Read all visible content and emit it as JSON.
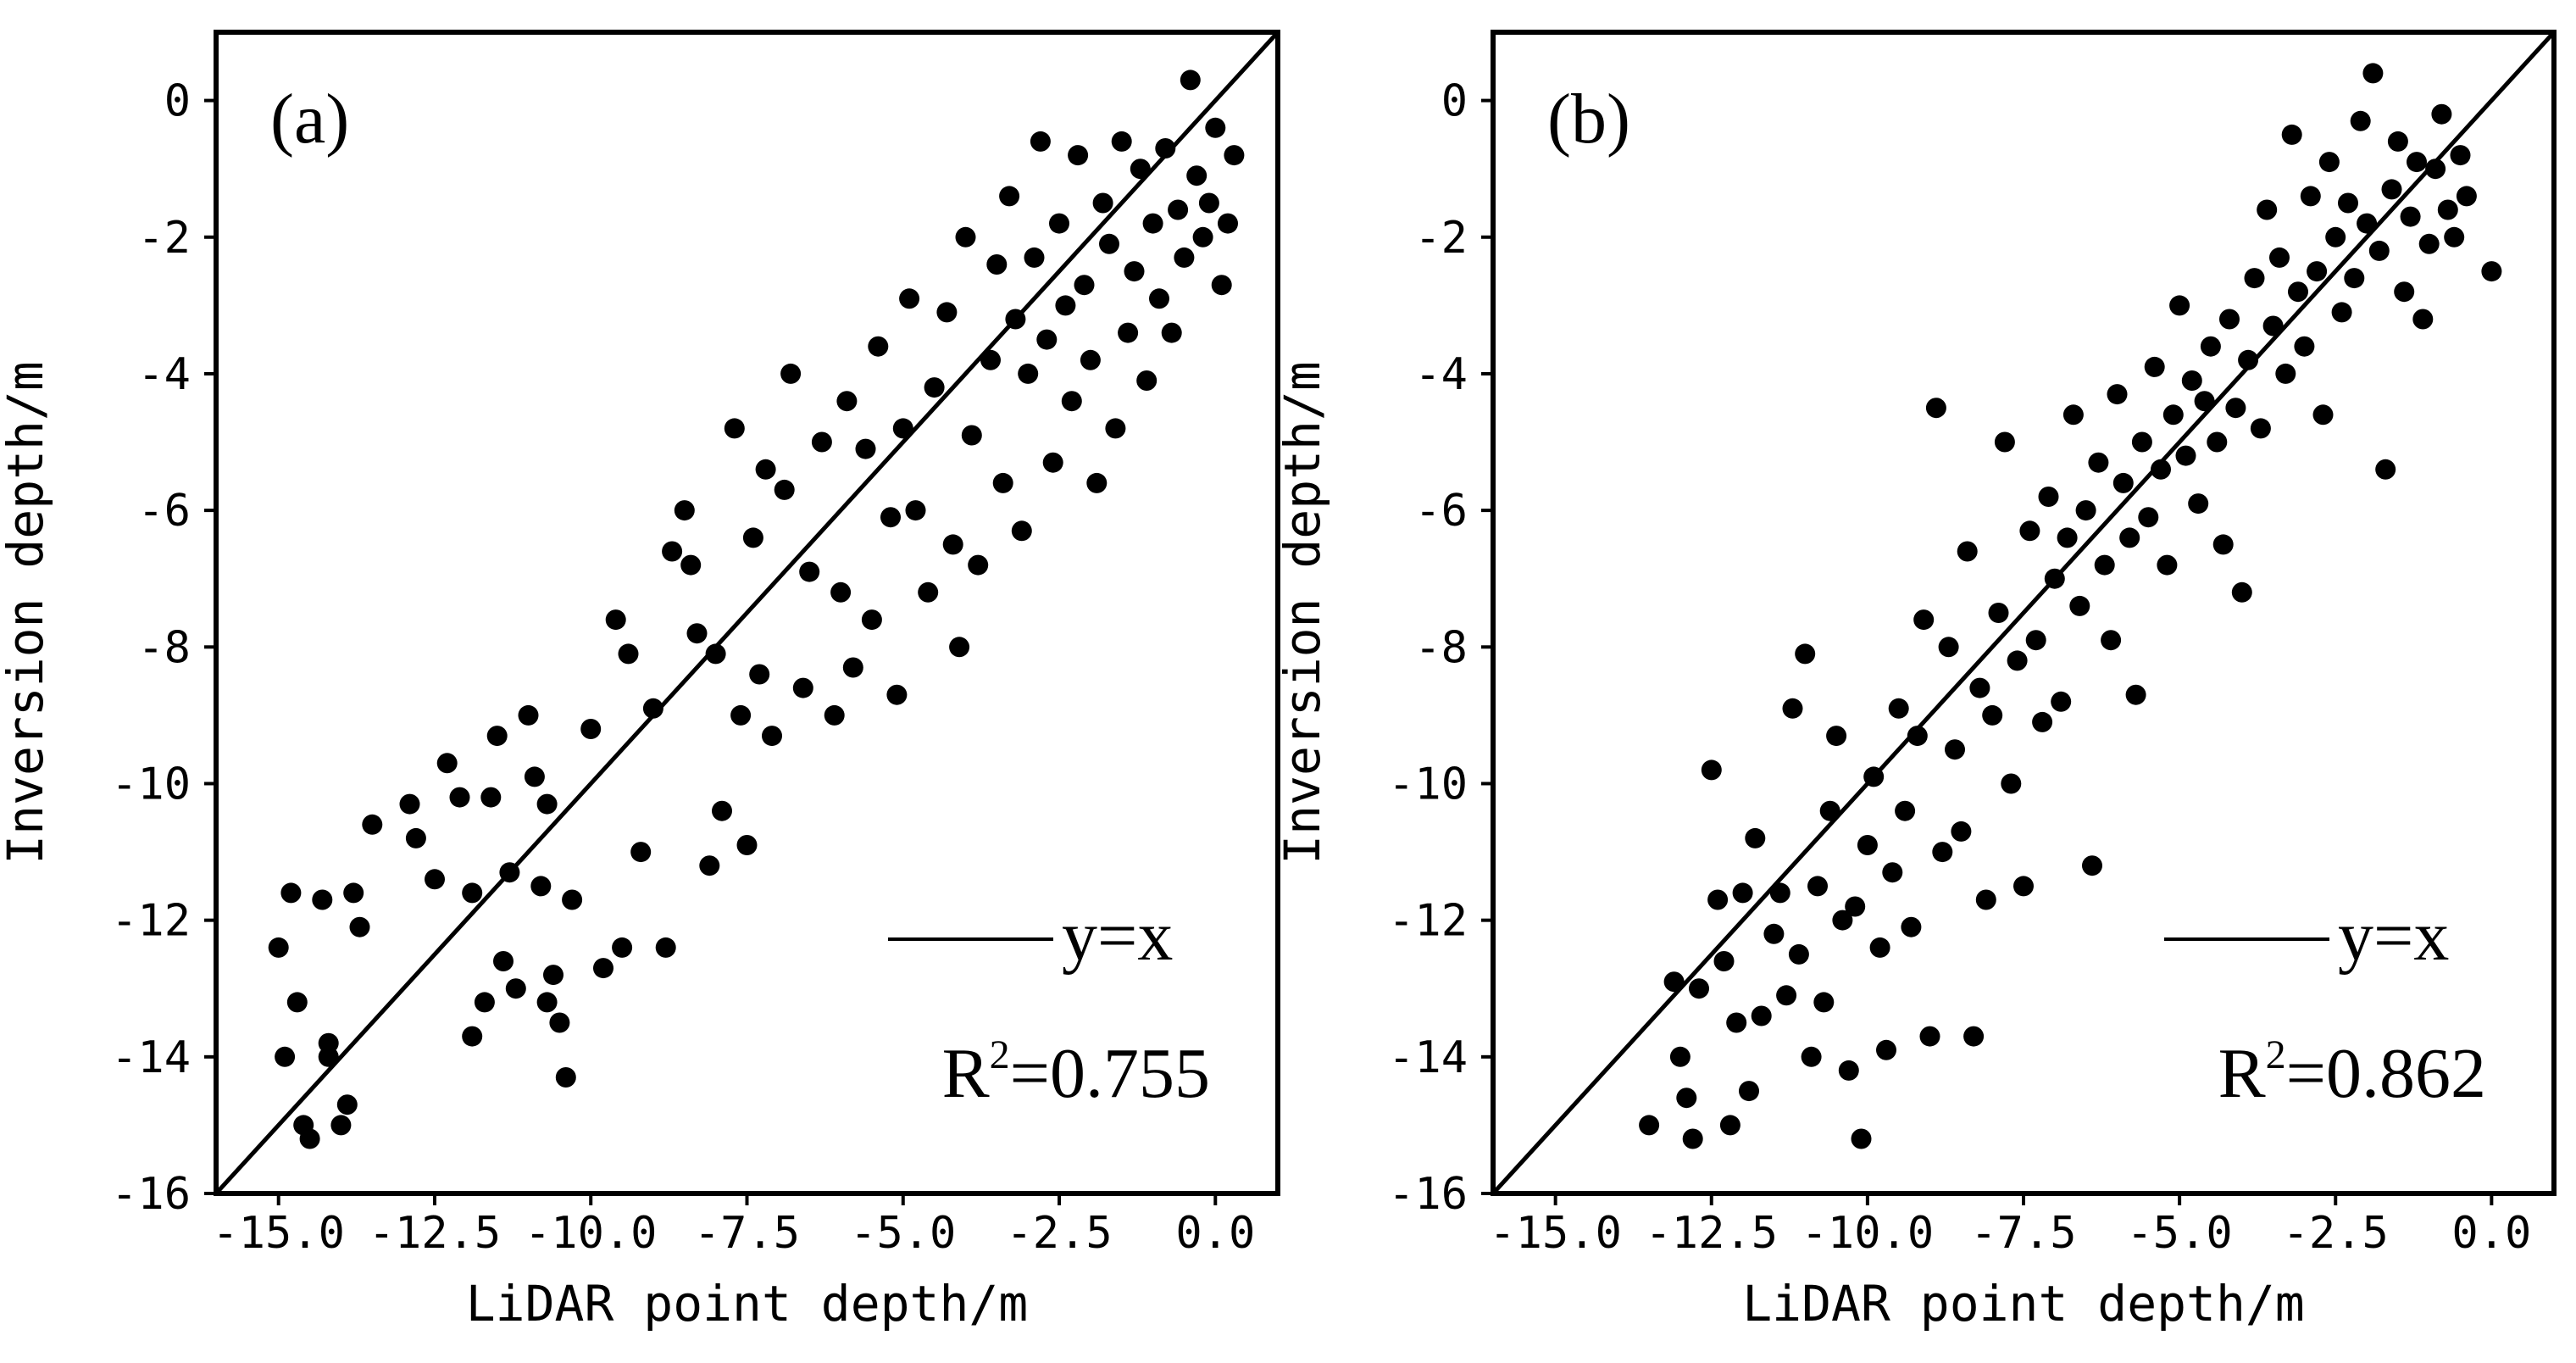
{
  "chart_data": [
    {
      "type": "scatter",
      "panel_label": "(a)",
      "xlabel": "LiDAR point depth/m",
      "ylabel": "Inversion depth/m",
      "xlim": [
        -16,
        1
      ],
      "ylim": [
        -16,
        1
      ],
      "xticks": [
        -15.0,
        -12.5,
        -10.0,
        -7.5,
        -5.0,
        -2.5,
        0.0
      ],
      "xtick_labels": [
        "-15.0",
        "-12.5",
        "-10.0",
        "-7.5",
        "-5.0",
        "-2.5",
        "0.0"
      ],
      "yticks": [
        0,
        -2,
        -4,
        -6,
        -8,
        -10,
        -12,
        -14,
        -16
      ],
      "ytick_labels": [
        "0",
        "-2",
        "-4",
        "-6",
        "-8",
        "-10",
        "-12",
        "-14",
        "-16"
      ],
      "reference_line": {
        "label": "y=x",
        "from": [
          -16,
          -16
        ],
        "to": [
          1,
          1
        ]
      },
      "r2_prefix": "R",
      "r2_sup": "2",
      "r2_value": "=0.755",
      "series": [
        {
          "name": "samples",
          "marker": "circle",
          "color": "#000000",
          "points": [
            [
              -15.0,
              -12.4
            ],
            [
              -14.9,
              -14.0
            ],
            [
              -14.8,
              -11.6
            ],
            [
              -14.7,
              -13.2
            ],
            [
              -14.6,
              -15.0
            ],
            [
              -14.5,
              -15.2
            ],
            [
              -14.3,
              -11.7
            ],
            [
              -14.2,
              -14.0
            ],
            [
              -14.2,
              -13.8
            ],
            [
              -14.0,
              -15.0
            ],
            [
              -13.9,
              -14.7
            ],
            [
              -13.8,
              -11.6
            ],
            [
              -13.7,
              -12.1
            ],
            [
              -13.5,
              -10.6
            ],
            [
              -12.9,
              -10.3
            ],
            [
              -12.8,
              -10.8
            ],
            [
              -12.5,
              -11.4
            ],
            [
              -12.3,
              -9.7
            ],
            [
              -12.1,
              -10.2
            ],
            [
              -11.9,
              -11.6
            ],
            [
              -11.9,
              -13.7
            ],
            [
              -11.7,
              -13.2
            ],
            [
              -11.6,
              -10.2
            ],
            [
              -11.5,
              -9.3
            ],
            [
              -11.4,
              -12.6
            ],
            [
              -11.3,
              -11.3
            ],
            [
              -11.2,
              -13.0
            ],
            [
              -11.0,
              -9.0
            ],
            [
              -10.9,
              -9.9
            ],
            [
              -10.8,
              -11.5
            ],
            [
              -10.7,
              -10.3
            ],
            [
              -10.7,
              -13.2
            ],
            [
              -10.6,
              -12.8
            ],
            [
              -10.5,
              -13.5
            ],
            [
              -10.4,
              -14.3
            ],
            [
              -10.3,
              -11.7
            ],
            [
              -10.0,
              -9.2
            ],
            [
              -9.8,
              -12.7
            ],
            [
              -9.6,
              -7.6
            ],
            [
              -9.5,
              -12.4
            ],
            [
              -9.4,
              -8.1
            ],
            [
              -9.2,
              -11.0
            ],
            [
              -9.0,
              -8.9
            ],
            [
              -8.8,
              -12.4
            ],
            [
              -8.7,
              -6.6
            ],
            [
              -8.5,
              -6.0
            ],
            [
              -8.4,
              -6.8
            ],
            [
              -8.3,
              -7.8
            ],
            [
              -8.1,
              -11.2
            ],
            [
              -8.0,
              -8.1
            ],
            [
              -7.9,
              -10.4
            ],
            [
              -7.7,
              -4.8
            ],
            [
              -7.6,
              -9.0
            ],
            [
              -7.5,
              -10.9
            ],
            [
              -7.4,
              -6.4
            ],
            [
              -7.3,
              -8.4
            ],
            [
              -7.2,
              -5.4
            ],
            [
              -7.1,
              -9.3
            ],
            [
              -6.9,
              -5.7
            ],
            [
              -6.8,
              -4.0
            ],
            [
              -6.6,
              -8.6
            ],
            [
              -6.5,
              -6.9
            ],
            [
              -6.3,
              -5.0
            ],
            [
              -6.1,
              -9.0
            ],
            [
              -6.0,
              -7.2
            ],
            [
              -5.9,
              -4.4
            ],
            [
              -5.8,
              -8.3
            ],
            [
              -5.6,
              -5.1
            ],
            [
              -5.5,
              -7.6
            ],
            [
              -5.4,
              -3.6
            ],
            [
              -5.2,
              -6.1
            ],
            [
              -5.1,
              -8.7
            ],
            [
              -5.0,
              -4.8
            ],
            [
              -4.9,
              -2.9
            ],
            [
              -4.8,
              -6.0
            ],
            [
              -4.6,
              -7.2
            ],
            [
              -4.5,
              -4.2
            ],
            [
              -4.3,
              -3.1
            ],
            [
              -4.2,
              -6.5
            ],
            [
              -4.1,
              -8.0
            ],
            [
              -4.0,
              -2.0
            ],
            [
              -3.9,
              -4.9
            ],
            [
              -3.8,
              -6.8
            ],
            [
              -3.6,
              -3.8
            ],
            [
              -3.5,
              -2.4
            ],
            [
              -3.4,
              -5.6
            ],
            [
              -3.3,
              -1.4
            ],
            [
              -3.2,
              -3.2
            ],
            [
              -3.1,
              -6.3
            ],
            [
              -3.0,
              -4.0
            ],
            [
              -2.9,
              -2.3
            ],
            [
              -2.8,
              -0.6
            ],
            [
              -2.7,
              -3.5
            ],
            [
              -2.6,
              -5.3
            ],
            [
              -2.5,
              -1.8
            ],
            [
              -2.4,
              -3.0
            ],
            [
              -2.3,
              -4.4
            ],
            [
              -2.2,
              -0.8
            ],
            [
              -2.1,
              -2.7
            ],
            [
              -2.0,
              -3.8
            ],
            [
              -1.9,
              -5.6
            ],
            [
              -1.8,
              -1.5
            ],
            [
              -1.7,
              -2.1
            ],
            [
              -1.6,
              -4.8
            ],
            [
              -1.5,
              -0.6
            ],
            [
              -1.4,
              -3.4
            ],
            [
              -1.3,
              -2.5
            ],
            [
              -1.2,
              -1.0
            ],
            [
              -1.1,
              -4.1
            ],
            [
              -1.0,
              -1.8
            ],
            [
              -0.9,
              -2.9
            ],
            [
              -0.8,
              -0.7
            ],
            [
              -0.7,
              -3.4
            ],
            [
              -0.6,
              -1.6
            ],
            [
              -0.5,
              -2.3
            ],
            [
              -0.4,
              0.3
            ],
            [
              -0.3,
              -1.1
            ],
            [
              -0.2,
              -2.0
            ],
            [
              -0.1,
              -1.5
            ],
            [
              0.0,
              -0.4
            ],
            [
              0.1,
              -2.7
            ],
            [
              0.2,
              -1.8
            ],
            [
              0.3,
              -0.8
            ]
          ]
        }
      ]
    },
    {
      "type": "scatter",
      "panel_label": "(b)",
      "xlabel": "LiDAR point depth/m",
      "ylabel": "Inversion depth/m",
      "xlim": [
        -16,
        1
      ],
      "ylim": [
        -16,
        1
      ],
      "xticks": [
        -15.0,
        -12.5,
        -10.0,
        -7.5,
        -5.0,
        -2.5,
        0.0
      ],
      "xtick_labels": [
        "-15.0",
        "-12.5",
        "-10.0",
        "-7.5",
        "-5.0",
        "-2.5",
        "0.0"
      ],
      "yticks": [
        0,
        -2,
        -4,
        -6,
        -8,
        -10,
        -12,
        -14,
        -16
      ],
      "ytick_labels": [
        "0",
        "-2",
        "-4",
        "-6",
        "-8",
        "-10",
        "-12",
        "-14",
        "-16"
      ],
      "reference_line": {
        "label": "y=x",
        "from": [
          -16,
          -16
        ],
        "to": [
          1,
          1
        ]
      },
      "r2_prefix": "R",
      "r2_sup": "2",
      "r2_value": "=0.862",
      "series": [
        {
          "name": "samples",
          "marker": "circle",
          "color": "#000000",
          "points": [
            [
              -13.5,
              -15.0
            ],
            [
              -13.1,
              -12.9
            ],
            [
              -13.0,
              -14.0
            ],
            [
              -12.9,
              -14.6
            ],
            [
              -12.8,
              -15.2
            ],
            [
              -12.7,
              -13.0
            ],
            [
              -12.5,
              -9.8
            ],
            [
              -12.4,
              -11.7
            ],
            [
              -12.3,
              -12.6
            ],
            [
              -12.2,
              -15.0
            ],
            [
              -12.1,
              -13.5
            ],
            [
              -12.0,
              -11.6
            ],
            [
              -11.9,
              -14.5
            ],
            [
              -11.8,
              -10.8
            ],
            [
              -11.7,
              -13.4
            ],
            [
              -11.5,
              -12.2
            ],
            [
              -11.4,
              -11.6
            ],
            [
              -11.3,
              -13.1
            ],
            [
              -11.2,
              -8.9
            ],
            [
              -11.1,
              -12.5
            ],
            [
              -11.0,
              -8.1
            ],
            [
              -10.9,
              -14.0
            ],
            [
              -10.8,
              -11.5
            ],
            [
              -10.7,
              -13.2
            ],
            [
              -10.6,
              -10.4
            ],
            [
              -10.5,
              -9.3
            ],
            [
              -10.4,
              -12.0
            ],
            [
              -10.3,
              -14.2
            ],
            [
              -10.2,
              -11.8
            ],
            [
              -10.1,
              -15.2
            ],
            [
              -10.0,
              -10.9
            ],
            [
              -9.9,
              -9.9
            ],
            [
              -9.8,
              -12.4
            ],
            [
              -9.7,
              -13.9
            ],
            [
              -9.6,
              -11.3
            ],
            [
              -9.5,
              -8.9
            ],
            [
              -9.4,
              -10.4
            ],
            [
              -9.3,
              -12.1
            ],
            [
              -9.2,
              -9.3
            ],
            [
              -9.1,
              -7.6
            ],
            [
              -9.0,
              -13.7
            ],
            [
              -8.9,
              -4.5
            ],
            [
              -8.8,
              -11.0
            ],
            [
              -8.7,
              -8.0
            ],
            [
              -8.6,
              -9.5
            ],
            [
              -8.5,
              -10.7
            ],
            [
              -8.4,
              -6.6
            ],
            [
              -8.3,
              -13.7
            ],
            [
              -8.2,
              -8.6
            ],
            [
              -8.1,
              -11.7
            ],
            [
              -8.0,
              -9.0
            ],
            [
              -7.9,
              -7.5
            ],
            [
              -7.8,
              -5.0
            ],
            [
              -7.7,
              -10.0
            ],
            [
              -7.6,
              -8.2
            ],
            [
              -7.5,
              -11.5
            ],
            [
              -7.4,
              -6.3
            ],
            [
              -7.3,
              -7.9
            ],
            [
              -7.2,
              -9.1
            ],
            [
              -7.1,
              -5.8
            ],
            [
              -7.0,
              -7.0
            ],
            [
              -6.9,
              -8.8
            ],
            [
              -6.8,
              -6.4
            ],
            [
              -6.7,
              -4.6
            ],
            [
              -6.6,
              -7.4
            ],
            [
              -6.5,
              -6.0
            ],
            [
              -6.4,
              -11.2
            ],
            [
              -6.3,
              -5.3
            ],
            [
              -6.2,
              -6.8
            ],
            [
              -6.1,
              -7.9
            ],
            [
              -6.0,
              -4.3
            ],
            [
              -5.9,
              -5.6
            ],
            [
              -5.8,
              -6.4
            ],
            [
              -5.7,
              -8.7
            ],
            [
              -5.6,
              -5.0
            ],
            [
              -5.5,
              -6.1
            ],
            [
              -5.4,
              -3.9
            ],
            [
              -5.3,
              -5.4
            ],
            [
              -5.2,
              -6.8
            ],
            [
              -5.1,
              -4.6
            ],
            [
              -5.0,
              -3.0
            ],
            [
              -4.9,
              -5.2
            ],
            [
              -4.8,
              -4.1
            ],
            [
              -4.7,
              -5.9
            ],
            [
              -4.6,
              -4.4
            ],
            [
              -4.5,
              -3.6
            ],
            [
              -4.4,
              -5.0
            ],
            [
              -4.3,
              -6.5
            ],
            [
              -4.2,
              -3.2
            ],
            [
              -4.1,
              -4.5
            ],
            [
              -4.0,
              -7.2
            ],
            [
              -3.9,
              -3.8
            ],
            [
              -3.8,
              -2.6
            ],
            [
              -3.7,
              -4.8
            ],
            [
              -3.6,
              -1.6
            ],
            [
              -3.5,
              -3.3
            ],
            [
              -3.4,
              -2.3
            ],
            [
              -3.3,
              -4.0
            ],
            [
              -3.2,
              -0.5
            ],
            [
              -3.1,
              -2.8
            ],
            [
              -3.0,
              -3.6
            ],
            [
              -2.9,
              -1.4
            ],
            [
              -2.8,
              -2.5
            ],
            [
              -2.7,
              -4.6
            ],
            [
              -2.6,
              -0.9
            ],
            [
              -2.5,
              -2.0
            ],
            [
              -2.4,
              -3.1
            ],
            [
              -2.3,
              -1.5
            ],
            [
              -2.2,
              -2.6
            ],
            [
              -2.1,
              -0.3
            ],
            [
              -2.0,
              -1.8
            ],
            [
              -1.9,
              0.4
            ],
            [
              -1.8,
              -2.2
            ],
            [
              -1.7,
              -5.4
            ],
            [
              -1.6,
              -1.3
            ],
            [
              -1.5,
              -0.6
            ],
            [
              -1.4,
              -2.8
            ],
            [
              -1.3,
              -1.7
            ],
            [
              -1.2,
              -0.9
            ],
            [
              -1.1,
              -3.2
            ],
            [
              -1.0,
              -2.1
            ],
            [
              -0.9,
              -1.0
            ],
            [
              -0.8,
              -0.2
            ],
            [
              -0.7,
              -1.6
            ],
            [
              -0.6,
              -2.0
            ],
            [
              -0.5,
              -0.8
            ],
            [
              -0.4,
              -1.4
            ],
            [
              0.0,
              -2.5
            ]
          ]
        }
      ]
    }
  ]
}
